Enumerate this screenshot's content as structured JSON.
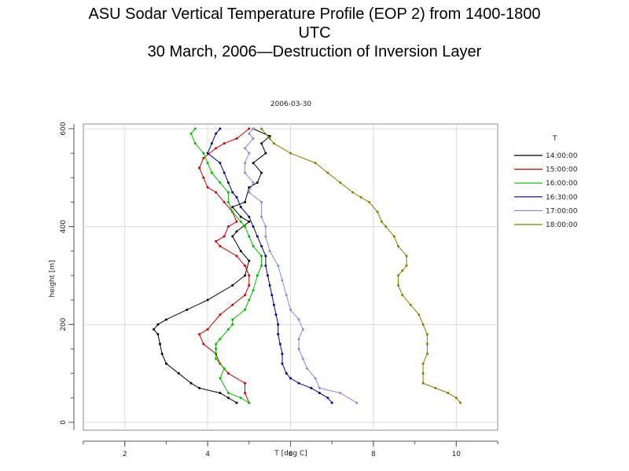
{
  "slide": {
    "title_lines": [
      "ASU Sodar Vertical Temperature Profile (EOP 2) from 1400-1800",
      "UTC",
      "30 March, 2006—Destruction of Inversion Layer"
    ]
  },
  "chart_data": {
    "type": "line",
    "title": "2006-03-30",
    "xlabel": "T [deg C]",
    "ylabel": "height [m]",
    "xlim": [
      1,
      11
    ],
    "ylim": [
      0,
      600
    ],
    "xticks": [
      2,
      4,
      6,
      8,
      10
    ],
    "yticks": [
      0,
      200,
      400,
      600
    ],
    "grid": true,
    "legend_title": "T",
    "legend_position": "right",
    "series": [
      {
        "name": "14:00:00",
        "color": "#000000",
        "points": [
          [
            4.7,
            40
          ],
          [
            4.5,
            50
          ],
          [
            4.3,
            60
          ],
          [
            3.8,
            70
          ],
          [
            3.6,
            80
          ],
          [
            3.3,
            100
          ],
          [
            3.0,
            120
          ],
          [
            2.9,
            140
          ],
          [
            2.85,
            160
          ],
          [
            2.8,
            180
          ],
          [
            2.7,
            190
          ],
          [
            2.8,
            200
          ],
          [
            3.0,
            210
          ],
          [
            3.5,
            230
          ],
          [
            4.0,
            250
          ],
          [
            4.6,
            280
          ],
          [
            4.9,
            300
          ],
          [
            5.0,
            330
          ],
          [
            4.8,
            350
          ],
          [
            4.6,
            380
          ],
          [
            4.7,
            390
          ],
          [
            5.0,
            410
          ],
          [
            4.8,
            420
          ],
          [
            4.6,
            440
          ],
          [
            4.9,
            450
          ],
          [
            5.0,
            480
          ],
          [
            5.2,
            490
          ],
          [
            5.3,
            510
          ],
          [
            5.1,
            530
          ],
          [
            5.4,
            550
          ],
          [
            5.3,
            570
          ],
          [
            5.5,
            585
          ],
          [
            5.1,
            600
          ]
        ]
      },
      {
        "name": "15:00:00",
        "color": "#cc0000",
        "points": [
          [
            5.0,
            40
          ],
          [
            4.9,
            60
          ],
          [
            4.9,
            80
          ],
          [
            4.5,
            100
          ],
          [
            4.3,
            120
          ],
          [
            4.2,
            140
          ],
          [
            3.9,
            160
          ],
          [
            3.8,
            180
          ],
          [
            4.0,
            190
          ],
          [
            4.3,
            220
          ],
          [
            4.6,
            240
          ],
          [
            4.9,
            260
          ],
          [
            5.0,
            280
          ],
          [
            5.0,
            300
          ],
          [
            4.9,
            320
          ],
          [
            4.7,
            340
          ],
          [
            4.3,
            360
          ],
          [
            4.2,
            370
          ],
          [
            4.4,
            380
          ],
          [
            4.5,
            400
          ],
          [
            4.7,
            410
          ],
          [
            4.6,
            430
          ],
          [
            4.4,
            450
          ],
          [
            4.2,
            470
          ],
          [
            4.0,
            480
          ],
          [
            3.9,
            500
          ],
          [
            3.8,
            520
          ],
          [
            3.9,
            540
          ],
          [
            4.2,
            560
          ],
          [
            4.4,
            570
          ],
          [
            4.7,
            580
          ],
          [
            5.0,
            600
          ]
        ]
      },
      {
        "name": "16:00:00",
        "color": "#00bb00",
        "points": [
          [
            5.0,
            40
          ],
          [
            4.8,
            50
          ],
          [
            4.5,
            60
          ],
          [
            4.3,
            90
          ],
          [
            4.4,
            110
          ],
          [
            4.2,
            130
          ],
          [
            4.2,
            150
          ],
          [
            4.2,
            160
          ],
          [
            4.3,
            170
          ],
          [
            4.5,
            190
          ],
          [
            4.6,
            200
          ],
          [
            4.6,
            210
          ],
          [
            4.9,
            230
          ],
          [
            5.0,
            250
          ],
          [
            5.1,
            270
          ],
          [
            5.2,
            300
          ],
          [
            5.3,
            320
          ],
          [
            5.3,
            340
          ],
          [
            5.1,
            360
          ],
          [
            5.0,
            380
          ],
          [
            4.9,
            400
          ],
          [
            4.8,
            410
          ],
          [
            4.6,
            430
          ],
          [
            4.5,
            450
          ],
          [
            4.5,
            470
          ],
          [
            4.3,
            490
          ],
          [
            4.1,
            510
          ],
          [
            4.0,
            530
          ],
          [
            3.9,
            550
          ],
          [
            3.7,
            570
          ],
          [
            3.6,
            590
          ],
          [
            3.7,
            600
          ]
        ]
      },
      {
        "name": "16:30:00",
        "color": "#00008b",
        "points": [
          [
            7.0,
            40
          ],
          [
            6.9,
            50
          ],
          [
            6.7,
            60
          ],
          [
            6.5,
            70
          ],
          [
            6.2,
            80
          ],
          [
            6.0,
            90
          ],
          [
            5.9,
            100
          ],
          [
            5.8,
            120
          ],
          [
            5.8,
            140
          ],
          [
            5.75,
            160
          ],
          [
            5.7,
            180
          ],
          [
            5.7,
            200
          ],
          [
            5.65,
            220
          ],
          [
            5.6,
            240
          ],
          [
            5.55,
            260
          ],
          [
            5.5,
            280
          ],
          [
            5.45,
            300
          ],
          [
            5.4,
            320
          ],
          [
            5.4,
            340
          ],
          [
            5.3,
            360
          ],
          [
            5.2,
            380
          ],
          [
            5.1,
            400
          ],
          [
            5.0,
            420
          ],
          [
            4.8,
            440
          ],
          [
            4.7,
            460
          ],
          [
            4.6,
            470
          ],
          [
            4.5,
            490
          ],
          [
            4.4,
            510
          ],
          [
            4.3,
            530
          ],
          [
            4.0,
            550
          ],
          [
            4.1,
            570
          ],
          [
            4.2,
            590
          ],
          [
            4.3,
            600
          ]
        ]
      },
      {
        "name": "17:00:00",
        "color": "#8888dd",
        "points": [
          [
            7.6,
            40
          ],
          [
            7.2,
            60
          ],
          [
            6.7,
            70
          ],
          [
            6.6,
            90
          ],
          [
            6.4,
            110
          ],
          [
            6.3,
            130
          ],
          [
            6.2,
            150
          ],
          [
            6.2,
            170
          ],
          [
            6.3,
            190
          ],
          [
            6.2,
            210
          ],
          [
            6.0,
            230
          ],
          [
            5.9,
            260
          ],
          [
            5.8,
            290
          ],
          [
            5.7,
            320
          ],
          [
            5.5,
            350
          ],
          [
            5.4,
            380
          ],
          [
            5.4,
            400
          ],
          [
            5.3,
            420
          ],
          [
            5.3,
            450
          ],
          [
            5.0,
            470
          ],
          [
            5.1,
            490
          ],
          [
            4.9,
            510
          ],
          [
            4.9,
            530
          ],
          [
            5.0,
            550
          ],
          [
            4.9,
            560
          ],
          [
            5.1,
            580
          ],
          [
            5.0,
            590
          ],
          [
            5.1,
            600
          ]
        ]
      },
      {
        "name": "18:00:00",
        "color": "#808000",
        "points": [
          [
            10.1,
            40
          ],
          [
            10.0,
            50
          ],
          [
            9.8,
            60
          ],
          [
            9.5,
            70
          ],
          [
            9.2,
            80
          ],
          [
            9.2,
            100
          ],
          [
            9.2,
            120
          ],
          [
            9.3,
            140
          ],
          [
            9.3,
            160
          ],
          [
            9.3,
            180
          ],
          [
            9.2,
            200
          ],
          [
            9.1,
            220
          ],
          [
            8.9,
            240
          ],
          [
            8.7,
            260
          ],
          [
            8.6,
            280
          ],
          [
            8.6,
            300
          ],
          [
            8.7,
            310
          ],
          [
            8.8,
            320
          ],
          [
            8.8,
            340
          ],
          [
            8.6,
            360
          ],
          [
            8.5,
            380
          ],
          [
            8.3,
            400
          ],
          [
            8.2,
            410
          ],
          [
            8.1,
            430
          ],
          [
            7.9,
            450
          ],
          [
            7.7,
            460
          ],
          [
            7.5,
            470
          ],
          [
            7.2,
            490
          ],
          [
            6.9,
            510
          ],
          [
            6.6,
            530
          ],
          [
            6.0,
            550
          ],
          [
            5.6,
            570
          ],
          [
            5.5,
            580
          ],
          [
            5.3,
            600
          ]
        ]
      }
    ]
  }
}
